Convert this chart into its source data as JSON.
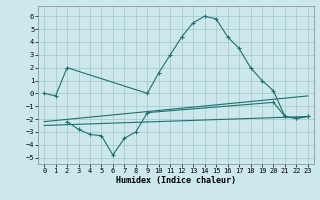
{
  "bg_color": "#cce8ec",
  "grid_color": "#aacccc",
  "line_color": "#1e7070",
  "xlabel": "Humidex (Indice chaleur)",
  "xlim": [
    -0.5,
    23.5
  ],
  "ylim": [
    -5.5,
    6.8
  ],
  "xticks": [
    0,
    1,
    2,
    3,
    4,
    5,
    6,
    7,
    8,
    9,
    10,
    11,
    12,
    13,
    14,
    15,
    16,
    17,
    18,
    19,
    20,
    21,
    22,
    23
  ],
  "yticks": [
    -5,
    -4,
    -3,
    -2,
    -1,
    0,
    1,
    2,
    3,
    4,
    5,
    6
  ],
  "series": [
    {
      "x": [
        0,
        1,
        2,
        9,
        10,
        11,
        12,
        13,
        14,
        15,
        16,
        17,
        18,
        19,
        20,
        21,
        22,
        23
      ],
      "y": [
        0.0,
        -0.2,
        2.0,
        0.0,
        1.6,
        3.0,
        4.4,
        5.5,
        6.0,
        5.8,
        4.4,
        3.5,
        2.0,
        1.0,
        0.2,
        -1.8,
        -1.95,
        -1.8
      ],
      "marker": true
    },
    {
      "x": [
        0,
        23
      ],
      "y": [
        -2.2,
        -0.2
      ],
      "marker": false
    },
    {
      "x": [
        0,
        23
      ],
      "y": [
        -2.5,
        -1.8
      ],
      "marker": false
    },
    {
      "x": [
        2,
        3,
        4,
        5,
        6,
        7,
        8,
        9,
        20,
        21,
        22,
        23
      ],
      "y": [
        -2.2,
        -2.8,
        -3.2,
        -3.3,
        -4.8,
        -3.5,
        -3.0,
        -1.5,
        -0.7,
        -1.8,
        -1.95,
        -1.8
      ],
      "marker": true
    }
  ]
}
